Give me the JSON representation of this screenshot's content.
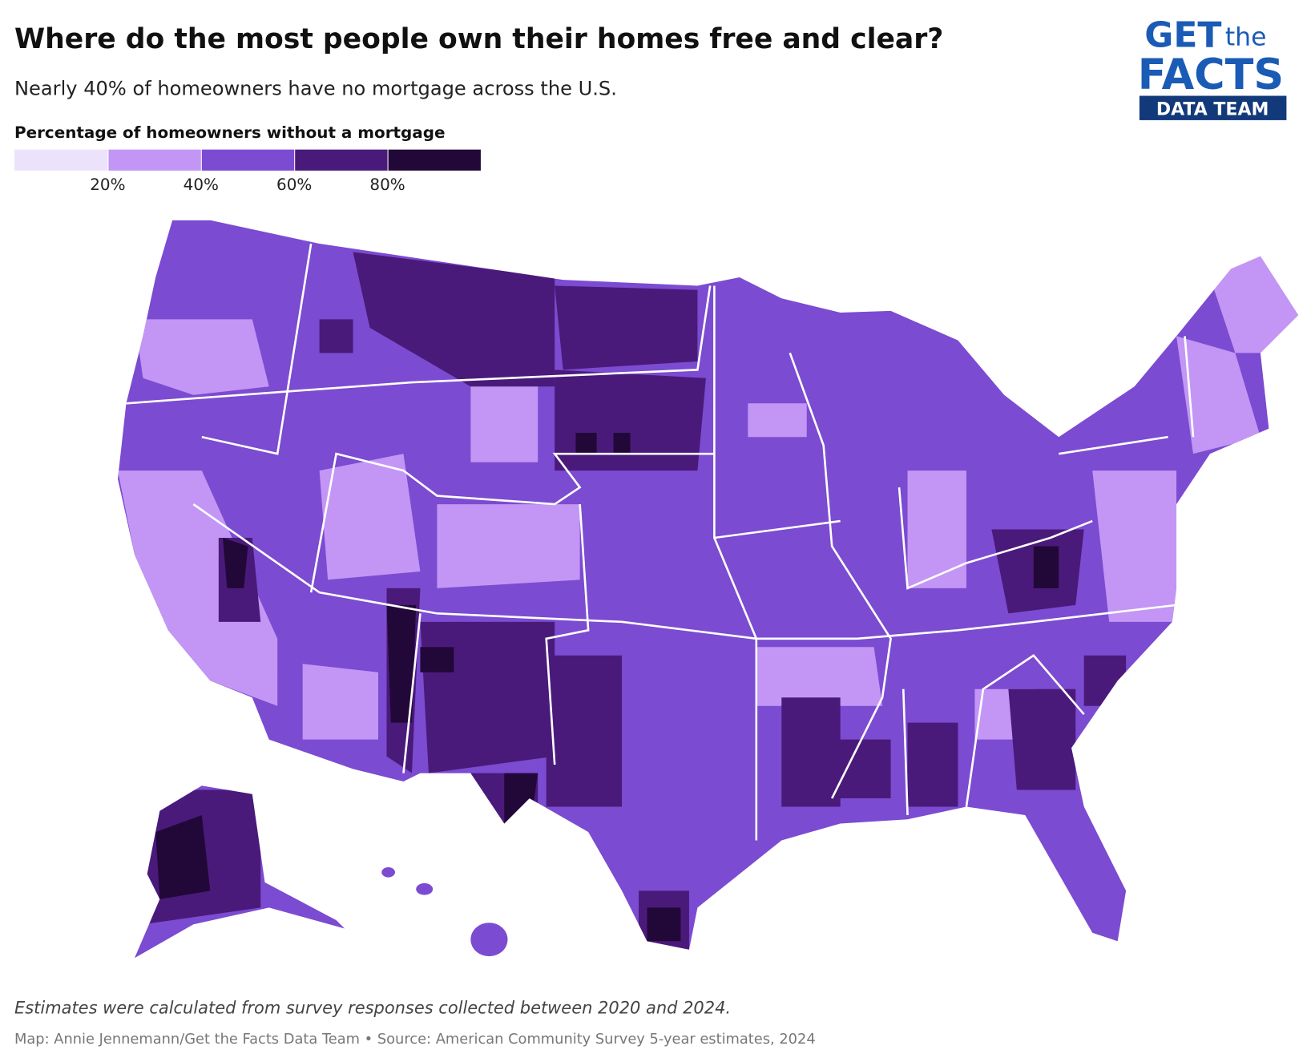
{
  "chart_data": {
    "type": "choropleth",
    "title": "Where do the most people own their homes free and clear?",
    "subtitle": "Nearly 40% of homeowners have no mortgage across the U.S.",
    "legend_title": "Percentage of homeowners without a mortgage",
    "colors": [
      "#ece2fb",
      "#c396f5",
      "#7b4bd1",
      "#4a1a7a",
      "#220838"
    ],
    "legend_ticks": [
      {
        "value": 20,
        "label": "20%"
      },
      {
        "value": 40,
        "label": "40%"
      },
      {
        "value": 60,
        "label": "60%"
      },
      {
        "value": 80,
        "label": "80%"
      }
    ],
    "note": "Estimates were calculated from survey responses collected between 2020 and 2024.",
    "source": "Map: Annie Jennemann/Get the Facts Data Team • Source: American Community Survey 5-year estimates, 2024"
  },
  "logo": {
    "line1": "GET",
    "line1b": "the",
    "line2": "FACTS",
    "line3": "DATA TEAM"
  }
}
